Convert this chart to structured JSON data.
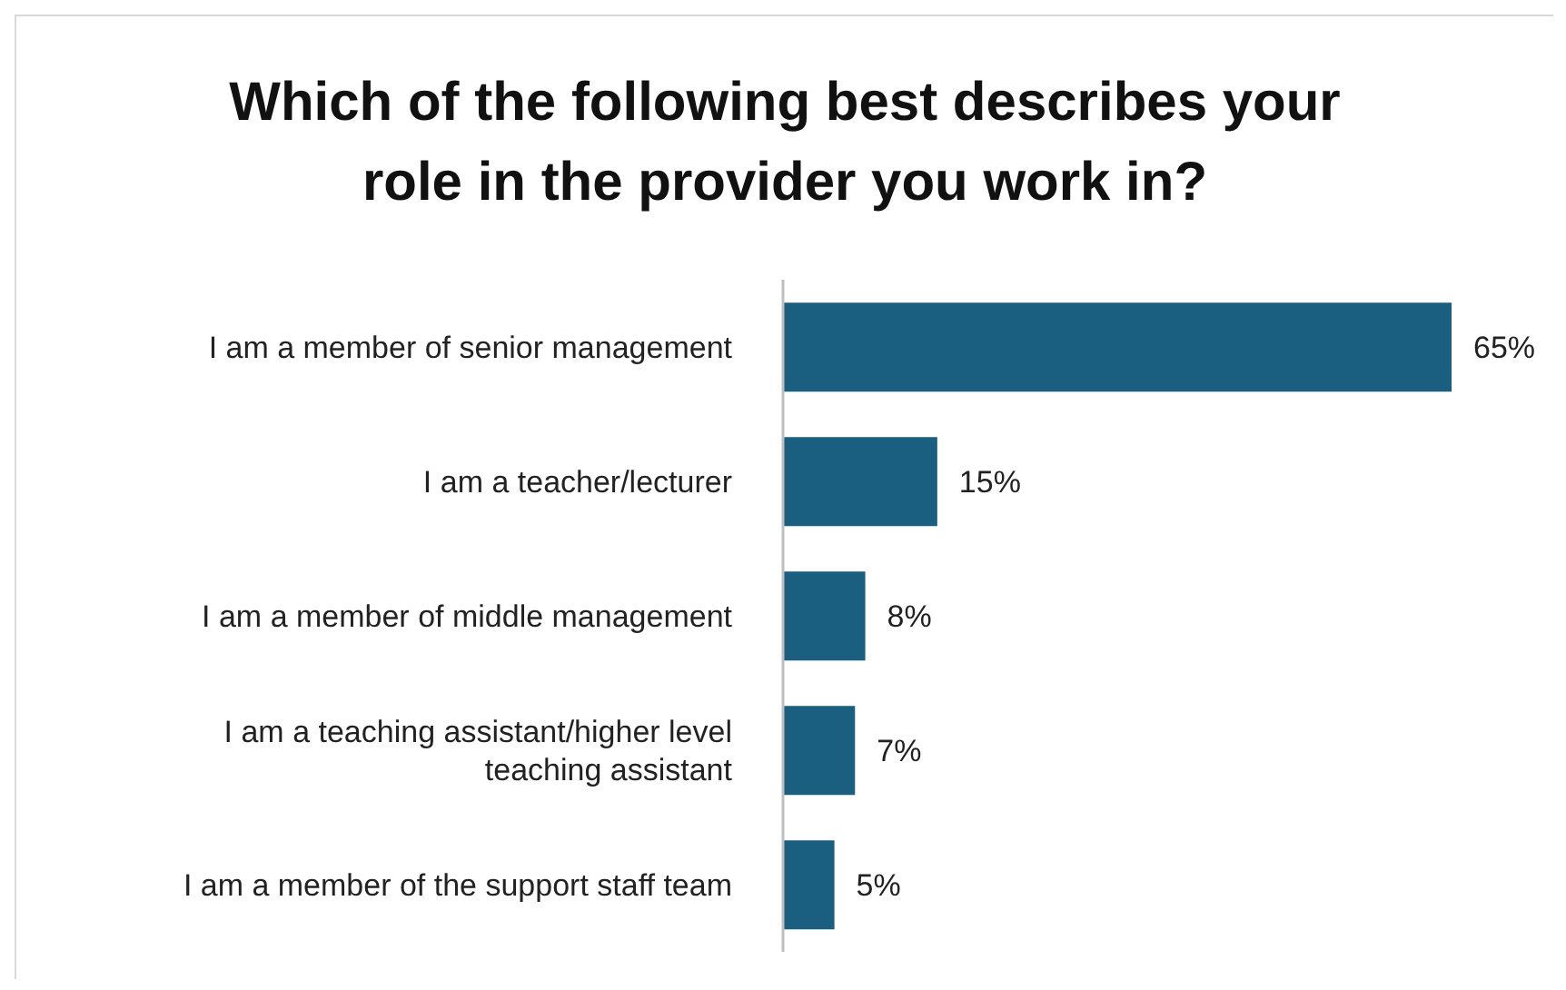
{
  "chart_data": {
    "type": "bar",
    "orientation": "horizontal",
    "title": "Which of the following best describes your role in the provider you work in?",
    "categories": [
      "I am a member of senior management",
      "I am a teacher/lecturer",
      "I am a member of middle management",
      "I am a teaching assistant/higher level teaching assistant",
      "I am a member of the support staff team"
    ],
    "values": [
      65,
      15,
      8,
      7,
      5
    ],
    "value_labels": [
      "65%",
      "15%",
      "8%",
      "7%",
      "5%"
    ],
    "color": "#1a5e80",
    "grid": false,
    "legend": false
  }
}
